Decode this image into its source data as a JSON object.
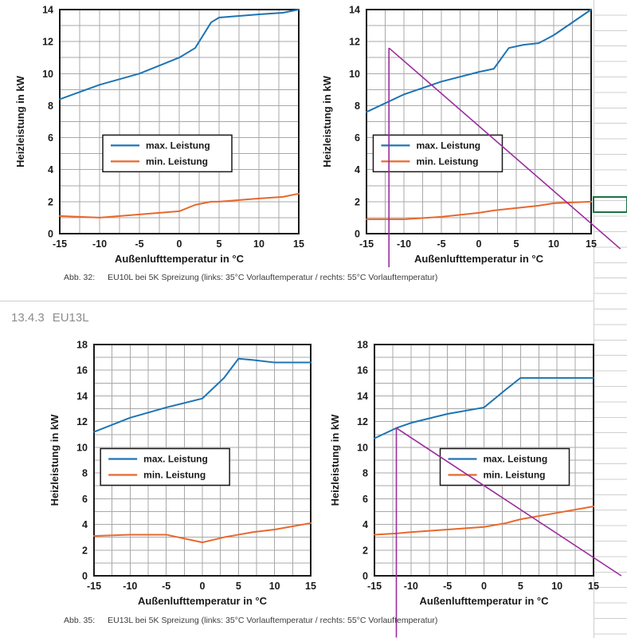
{
  "section": {
    "number": "13.4.3",
    "title": "EU13L"
  },
  "captions": [
    {
      "label": "Abb. 32:",
      "text": "EU10L bei 5K Spreizung (links: 35°C Vorlauftemperatur / rechts: 55°C Vorlauftemperatur)"
    },
    {
      "label": "Abb. 35:",
      "text": "EU13L bei 5K Spreizung (links: 35°C Vorlauftemperatur / rechts: 55°C Vorlauftemperatur)"
    }
  ],
  "spreadsheet": {
    "grid_color": "#cfcfcf",
    "selection_color": "#1e7145"
  },
  "colors": {
    "max_leistung": "#1c74b4",
    "min_leistung": "#e8682c",
    "annotation": "#9b2d9e",
    "grid": "#a8a8a8",
    "axis": "#1a1a1a"
  },
  "chart_data": [
    {
      "name": "chart-eu10l-35c",
      "type": "line",
      "title": "",
      "xlabel": "Außenlufttemperatur in °C",
      "ylabel": "Heizleistung in kW",
      "xlim": [
        -15,
        15
      ],
      "ylim": [
        0,
        14
      ],
      "xticks": [
        -15,
        -10,
        -5,
        0,
        5,
        10,
        15
      ],
      "yticks": [
        0,
        2,
        4,
        6,
        8,
        10,
        12,
        14
      ],
      "grid_x_step": 2.5,
      "grid_y_step": 1,
      "x": [
        -15,
        -10,
        -5,
        0,
        2,
        4,
        5,
        10,
        13,
        15
      ],
      "series": [
        {
          "name": "max. Leistung",
          "color": "#1c74b4",
          "values": [
            8.4,
            9.3,
            10.0,
            11.0,
            11.6,
            13.2,
            13.5,
            13.7,
            13.8,
            14.0
          ]
        },
        {
          "name": "min. Leistung",
          "color": "#e8682c",
          "values": [
            1.1,
            1.0,
            1.2,
            1.4,
            1.8,
            2.0,
            2.0,
            2.2,
            2.3,
            2.5
          ]
        }
      ],
      "legend": {
        "fx": 0.18,
        "fy": 0.56
      }
    },
    {
      "name": "chart-eu10l-55c",
      "type": "line",
      "title": "",
      "xlabel": "Außenlufttemperatur in °C",
      "ylabel": "Heizleistung in kW",
      "xlim": [
        -15,
        15
      ],
      "ylim": [
        0,
        14
      ],
      "xticks": [
        -15,
        -10,
        -5,
        0,
        5,
        10,
        15
      ],
      "yticks": [
        0,
        2,
        4,
        6,
        8,
        10,
        12,
        14
      ],
      "grid_x_step": 2.5,
      "grid_y_step": 1,
      "x": [
        -15,
        -10,
        -5,
        0,
        2,
        4,
        6,
        8,
        10,
        15
      ],
      "series": [
        {
          "name": "max. Leistung",
          "color": "#1c74b4",
          "values": [
            7.6,
            8.7,
            9.5,
            10.1,
            10.3,
            11.6,
            11.8,
            11.9,
            12.4,
            14.0
          ]
        },
        {
          "name": "min. Leistung",
          "color": "#e8682c",
          "values": [
            0.9,
            0.9,
            1.05,
            1.3,
            1.45,
            1.55,
            1.65,
            1.75,
            1.9,
            2.0
          ]
        }
      ],
      "legend": {
        "fx": 0.03,
        "fy": 0.56
      },
      "annotation": {
        "color": "#9b2d9e",
        "polylines": [
          [
            [
              -12,
              11.6
            ],
            [
              -12,
              -2.1
            ]
          ],
          [
            [
              -12,
              11.6
            ],
            [
              18.9,
              -0.95
            ]
          ]
        ]
      }
    },
    {
      "name": "chart-eu13l-35c",
      "type": "line",
      "title": "",
      "xlabel": "Außenlufttemperatur in °C",
      "ylabel": "Heizleistung in kW",
      "xlim": [
        -15,
        15
      ],
      "ylim": [
        0,
        18
      ],
      "xticks": [
        -15,
        -10,
        -5,
        0,
        5,
        10,
        15
      ],
      "yticks": [
        0,
        2,
        4,
        6,
        8,
        10,
        12,
        14,
        16,
        18
      ],
      "grid_x_step": 2.5,
      "grid_y_step": 1,
      "x": [
        -15,
        -10,
        -5,
        0,
        3,
        5,
        7,
        10,
        15
      ],
      "series": [
        {
          "name": "max. Leistung",
          "color": "#1c74b4",
          "values": [
            11.2,
            12.3,
            13.1,
            13.8,
            15.4,
            16.9,
            16.8,
            16.6,
            16.6
          ]
        },
        {
          "name": "min. Leistung",
          "color": "#e8682c",
          "values": [
            3.1,
            3.2,
            3.2,
            2.6,
            3.0,
            3.2,
            3.4,
            3.6,
            4.1
          ]
        }
      ],
      "legend": {
        "fx": 0.03,
        "fy": 0.45
      }
    },
    {
      "name": "chart-eu13l-55c",
      "type": "line",
      "title": "",
      "xlabel": "Außenlufttemperatur in °C",
      "ylabel": "Heizleistung in kW",
      "xlim": [
        -15,
        15
      ],
      "ylim": [
        0,
        18
      ],
      "xticks": [
        -15,
        -10,
        -5,
        0,
        5,
        10,
        15
      ],
      "yticks": [
        0,
        2,
        4,
        6,
        8,
        10,
        12,
        14,
        16,
        18
      ],
      "grid_x_step": 2.5,
      "grid_y_step": 1,
      "x": [
        -15,
        -12,
        -10,
        -5,
        0,
        3,
        5,
        10,
        15
      ],
      "series": [
        {
          "name": "max. Leistung",
          "color": "#1c74b4",
          "values": [
            10.7,
            11.5,
            11.9,
            12.6,
            13.1,
            14.5,
            15.4,
            15.4,
            15.4
          ]
        },
        {
          "name": "min. Leistung",
          "color": "#e8682c",
          "values": [
            3.2,
            3.3,
            3.4,
            3.6,
            3.8,
            4.1,
            4.4,
            4.9,
            5.4
          ]
        }
      ],
      "legend": {
        "fx": 0.3,
        "fy": 0.45
      },
      "annotation": {
        "color": "#9b2d9e",
        "polylines": [
          [
            [
              -12,
              11.5
            ],
            [
              -12,
              -4.8
            ]
          ],
          [
            [
              -12,
              11.5
            ],
            [
              18.8,
              0.0
            ]
          ]
        ]
      }
    }
  ]
}
